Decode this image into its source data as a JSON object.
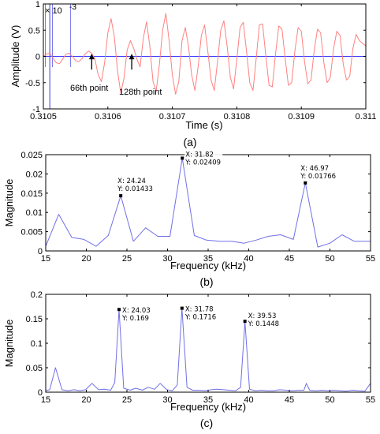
{
  "colors": {
    "signal": "#ff8080",
    "spectrum": "#7070e8",
    "marker_line": "#5a5ae6",
    "zero_line": "#4040ff",
    "frame": "#000000",
    "datatip_bg": "#ffffff"
  },
  "chart_data": [
    {
      "type": "line",
      "panel": "a",
      "caption": "(a)",
      "xlabel": "Time (s)",
      "ylabel": "Amplitude (V)",
      "y_multiplier": "× 10",
      "y_multiplier_exp": "-3",
      "xlim": [
        0.3105,
        0.311
      ],
      "ylim": [
        -1,
        1
      ],
      "x_ticks": [
        0.3105,
        0.3106,
        0.3107,
        0.3108,
        0.3109,
        0.311
      ],
      "x_tick_labels": [
        "0.3105",
        "0.3106",
        "0.3107",
        "0.3108",
        "0.3109",
        "0.311"
      ],
      "y_ticks": [
        -1,
        -0.5,
        0,
        0.5,
        1
      ],
      "y_tick_labels": [
        "-1",
        "-0.5",
        "0",
        "0.5",
        "1"
      ],
      "grid": false,
      "reference_lines": [
        0.31051,
        0.310503,
        0.310514,
        0.310542
      ],
      "annotations": [
        {
          "text": "66th point",
          "x": 0.310575,
          "y": 0.05
        },
        {
          "text": "128th point",
          "x": 0.310637,
          "y": 0.05
        }
      ],
      "series": [
        {
          "t": [
            0.3105,
            0.310505,
            0.31051,
            0.310515,
            0.31052,
            0.310525,
            0.31053,
            0.310535,
            0.31054,
            0.310545,
            0.31055,
            0.310555,
            0.31056,
            0.310565,
            0.31057,
            0.310575,
            0.31058,
            0.310585,
            0.31059,
            0.310595,
            0.3106,
            0.310605,
            0.31061,
            0.310615,
            0.31062,
            0.310625,
            0.31063,
            0.310635,
            0.31064,
            0.310645,
            0.31065,
            0.310655,
            0.31066,
            0.310665,
            0.31067,
            0.310675,
            0.31068,
            0.310685,
            0.31069,
            0.310695,
            0.3107,
            0.310705,
            0.31071,
            0.310715,
            0.31072,
            0.310725,
            0.31073,
            0.310735,
            0.31074,
            0.310745,
            0.31075,
            0.310755,
            0.31076,
            0.310765,
            0.31077,
            0.310775,
            0.31078,
            0.310785,
            0.31079,
            0.310795,
            0.3108,
            0.310805,
            0.31081,
            0.310815,
            0.31082,
            0.310825,
            0.31083,
            0.310835,
            0.31084,
            0.310845,
            0.31085,
            0.310855,
            0.31086,
            0.310865,
            0.31087,
            0.310875,
            0.31088,
            0.310885,
            0.31089,
            0.310895,
            0.3109,
            0.310905,
            0.31091,
            0.310915,
            0.31092,
            0.310925,
            0.31093,
            0.310935,
            0.31094,
            0.310945,
            0.31095,
            0.310955,
            0.31096,
            0.310965,
            0.31097,
            0.310975,
            0.31098,
            0.310985,
            0.31099,
            0.310995,
            0.311
          ],
          "values": [
            0.0,
            0.05,
            0.06,
            -0.03,
            -0.12,
            -0.14,
            -0.05,
            0.04,
            0.06,
            0.0,
            -0.08,
            -0.1,
            -0.04,
            0.05,
            0.1,
            0.06,
            -0.05,
            -0.35,
            -0.48,
            -0.12,
            0.45,
            0.72,
            0.38,
            -0.28,
            -0.7,
            -0.42,
            0.12,
            0.3,
            0.16,
            -0.05,
            -0.2,
            0.35,
            0.66,
            0.2,
            -0.48,
            -0.66,
            -0.15,
            0.5,
            0.82,
            0.3,
            -0.35,
            -0.72,
            -0.48,
            0.3,
            0.55,
            0.2,
            -0.35,
            -0.65,
            -0.2,
            0.4,
            0.6,
            0.1,
            -0.45,
            -0.65,
            -0.1,
            0.5,
            0.68,
            0.2,
            -0.4,
            -0.62,
            -0.05,
            0.55,
            0.65,
            0.1,
            -0.5,
            -0.65,
            -0.05,
            0.6,
            0.62,
            0.0,
            -0.55,
            -0.58,
            0.05,
            0.58,
            0.52,
            -0.05,
            -0.55,
            -0.5,
            0.1,
            0.55,
            0.48,
            -0.1,
            -0.52,
            -0.45,
            0.12,
            0.52,
            0.45,
            -0.12,
            -0.5,
            -0.4,
            0.15,
            0.48,
            0.4,
            -0.15,
            -0.45,
            -0.38,
            0.15,
            0.42,
            0.3,
            0.25,
            0.2
          ]
        }
      ]
    },
    {
      "type": "line",
      "panel": "b",
      "caption": "(b)",
      "xlabel": "Frequency (kHz)",
      "ylabel": "Magnitude",
      "xlim": [
        15,
        55
      ],
      "ylim": [
        0,
        0.025
      ],
      "x_ticks": [
        15,
        20,
        25,
        30,
        35,
        40,
        45,
        50,
        55
      ],
      "x_tick_labels": [
        "15",
        "20",
        "25",
        "30",
        "35",
        "40",
        "45",
        "50",
        "55"
      ],
      "y_ticks": [
        0,
        0.005,
        0.01,
        0.015,
        0.02,
        0.025
      ],
      "y_tick_labels": [
        "0",
        "0.005",
        "0.01",
        "0.015",
        "0.02",
        "0.025"
      ],
      "grid": false,
      "datatips": [
        {
          "x": 24.24,
          "y": 0.01433,
          "x_text": "X: 24.24",
          "y_text": "Y: 0.01433"
        },
        {
          "x": 31.82,
          "y": 0.02409,
          "x_text": "X: 31.82",
          "y_text": "Y: 0.02409"
        },
        {
          "x": 46.97,
          "y": 0.01766,
          "x_text": "X: 46.97",
          "y_text": "Y: 0.01766"
        }
      ],
      "series": [
        {
          "x": [
            15.0,
            16.6,
            18.2,
            19.7,
            21.2,
            22.7,
            24.24,
            25.8,
            27.3,
            28.8,
            30.3,
            31.82,
            33.3,
            34.8,
            36.4,
            37.9,
            39.4,
            40.9,
            42.4,
            43.9,
            45.5,
            46.97,
            48.5,
            50.0,
            51.5,
            53.0,
            54.5,
            55.0
          ],
          "values": [
            0.0012,
            0.0095,
            0.0035,
            0.003,
            0.0012,
            0.004,
            0.01433,
            0.0025,
            0.006,
            0.0038,
            0.0038,
            0.02409,
            0.004,
            0.0028,
            0.0025,
            0.0025,
            0.002,
            0.0028,
            0.0038,
            0.0042,
            0.003,
            0.01766,
            0.001,
            0.002,
            0.0042,
            0.0025,
            0.0025,
            0.0025
          ]
        }
      ]
    },
    {
      "type": "line",
      "panel": "c",
      "caption": "(c)",
      "xlabel": "Frequency (kHz)",
      "ylabel": "Magnitude",
      "xlim": [
        15,
        55
      ],
      "ylim": [
        0,
        0.2
      ],
      "x_ticks": [
        15,
        20,
        25,
        30,
        35,
        40,
        45,
        50,
        55
      ],
      "x_tick_labels": [
        "15",
        "20",
        "25",
        "30",
        "35",
        "40",
        "45",
        "50",
        "55"
      ],
      "y_ticks": [
        0,
        0.05,
        0.1,
        0.15,
        0.2
      ],
      "y_tick_labels": [
        "0",
        "0.05",
        "0.1",
        "0.15",
        "0.2"
      ],
      "grid": false,
      "datatips": [
        {
          "x": 24.03,
          "y": 0.169,
          "x_text": "X: 24.03",
          "y_text": "Y: 0.169"
        },
        {
          "x": 31.78,
          "y": 0.1716,
          "x_text": "X: 31.78",
          "y_text": "Y: 0.1716"
        },
        {
          "x": 39.53,
          "y": 0.1448,
          "x_text": "X: 39.53",
          "y_text": "Y: 0.1448"
        }
      ],
      "series": [
        {
          "x": [
            15.0,
            15.5,
            16.2,
            17.0,
            17.7,
            18.5,
            19.2,
            19.9,
            20.7,
            21.5,
            22.2,
            23.0,
            23.5,
            24.03,
            24.6,
            25.4,
            26.1,
            26.9,
            27.6,
            28.4,
            29.1,
            29.9,
            30.6,
            31.2,
            31.78,
            32.4,
            33.1,
            33.9,
            34.6,
            35.4,
            36.1,
            36.9,
            37.6,
            38.4,
            39.0,
            39.53,
            40.1,
            40.8,
            41.6,
            42.3,
            43.1,
            43.8,
            44.6,
            45.3,
            46.1,
            46.8,
            47.1,
            47.5,
            48.3,
            49.0,
            49.8,
            50.5,
            51.3,
            52.0,
            52.8,
            53.5,
            54.3,
            55.0
          ],
          "values": [
            0.003,
            0.005,
            0.05,
            0.005,
            0.003,
            0.005,
            0.003,
            0.005,
            0.018,
            0.005,
            0.006,
            0.004,
            0.02,
            0.169,
            0.008,
            0.004,
            0.008,
            0.004,
            0.01,
            0.006,
            0.018,
            0.005,
            0.003,
            0.015,
            0.1716,
            0.01,
            0.004,
            0.004,
            0.003,
            0.005,
            0.006,
            0.005,
            0.004,
            0.003,
            0.01,
            0.1448,
            0.006,
            0.003,
            0.004,
            0.003,
            0.003,
            0.005,
            0.004,
            0.003,
            0.004,
            0.004,
            0.018,
            0.004,
            0.003,
            0.004,
            0.003,
            0.004,
            0.003,
            0.002,
            0.004,
            0.003,
            0.002,
            0.018
          ]
        }
      ]
    }
  ]
}
